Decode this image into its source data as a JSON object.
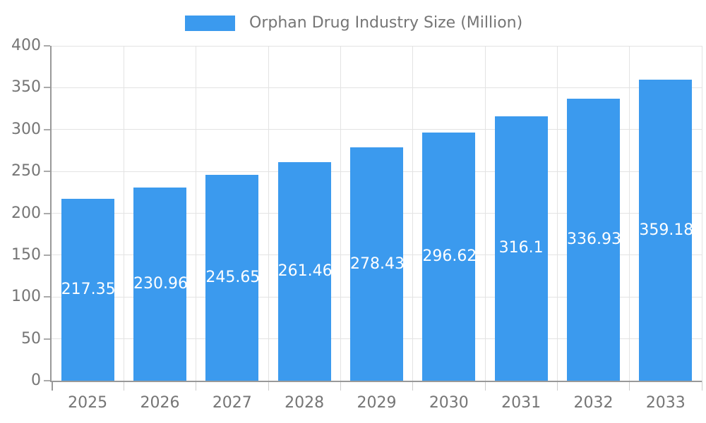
{
  "legend": {
    "label": "Orphan Drug Industry Size (Million)"
  },
  "chart_data": {
    "type": "bar",
    "title": "Orphan Drug Industry Size (Million)",
    "categories": [
      "2025",
      "2026",
      "2027",
      "2028",
      "2029",
      "2030",
      "2031",
      "2032",
      "2033"
    ],
    "values": [
      217.35,
      230.96,
      245.65,
      261.46,
      278.43,
      296.62,
      316.1,
      336.93,
      359.18
    ],
    "value_labels": [
      "217.35",
      "230.96",
      "245.65",
      "261.46",
      "278.43",
      "296.62",
      "316.1",
      "336.93",
      "359.18"
    ],
    "xlabel": "",
    "ylabel": "",
    "ylim": [
      0,
      400
    ],
    "yticks": [
      0,
      50,
      100,
      150,
      200,
      250,
      300,
      350,
      400
    ],
    "grid": true,
    "legend_position": "top",
    "bar_color": "#3B9AEE",
    "bar_label_color": "#ffffff",
    "axis_text_color": "#757575",
    "gridline_color": "#e3e3e3",
    "axis_line_color": "#999999",
    "tick_color": "#cccccc"
  }
}
